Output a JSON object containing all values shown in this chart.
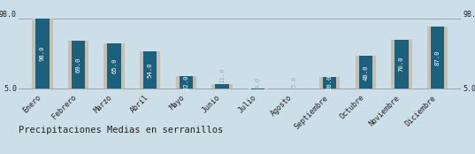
{
  "categories": [
    "Enero",
    "Febrero",
    "Marzo",
    "Abril",
    "Mayo",
    "Junio",
    "Julio",
    "Agosto",
    "Septiembre",
    "Octubre",
    "Noviembre",
    "Diciembre"
  ],
  "values": [
    98.0,
    69.0,
    65.0,
    54.0,
    22.0,
    11.0,
    4.0,
    5.0,
    20.0,
    48.0,
    70.0,
    87.0
  ],
  "bar_color": "#1b607c",
  "bg_bar_color": "#c8bfb0",
  "background_color": "#ccdee8",
  "text_color": "#ffffff",
  "label_color_small": "#aaaaaa",
  "ylim_min": 5.0,
  "ylim_max": 98.0,
  "ytick_left": "98.0",
  "ytick_right": "98.0",
  "ytick_bottom_left": "5.0",
  "ytick_bottom_right": "5.0",
  "title": "Precipitaciones Medias en serranillos",
  "title_fontsize": 7.5,
  "bar_label_fontsize": 5.2,
  "tick_fontsize": 6.0
}
